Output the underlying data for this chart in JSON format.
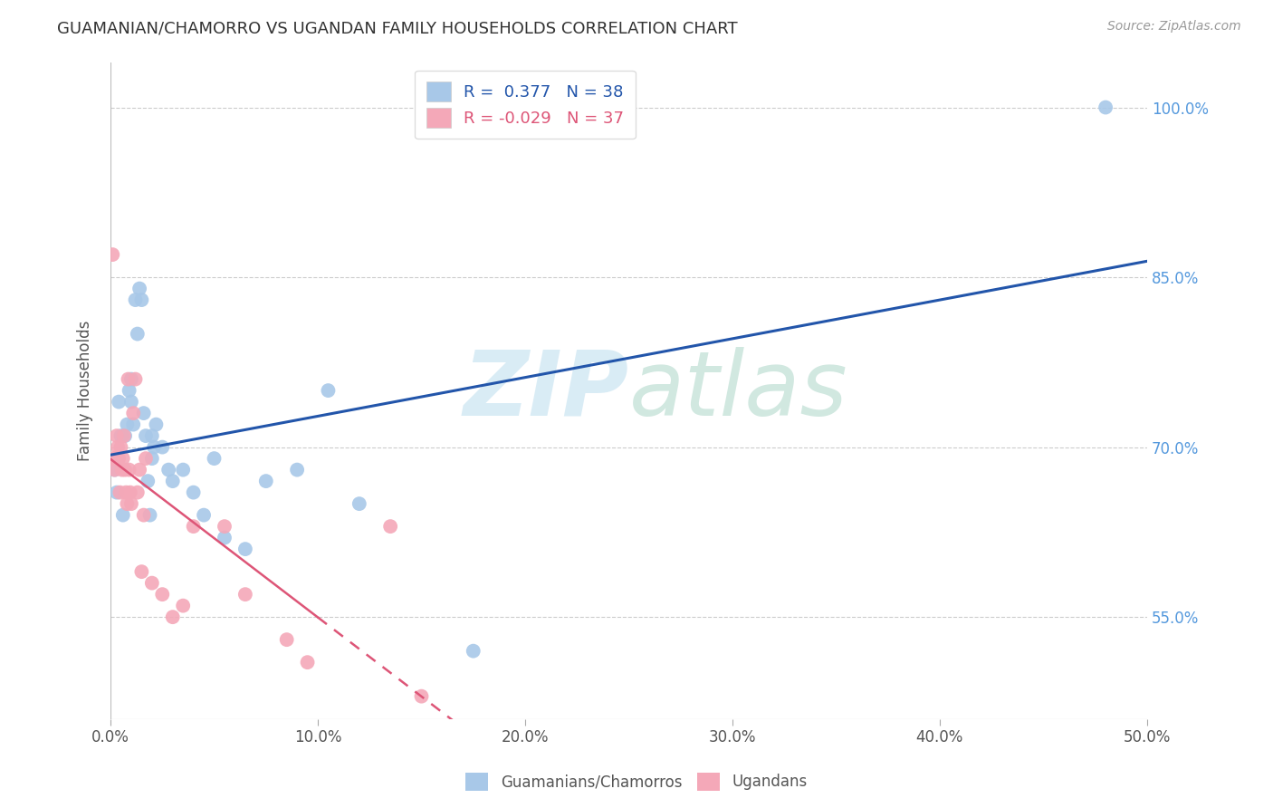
{
  "title": "GUAMANIAN/CHAMORRO VS UGANDAN FAMILY HOUSEHOLDS CORRELATION CHART",
  "source": "Source: ZipAtlas.com",
  "ylabel": "Family Households",
  "x_min": 0.0,
  "x_max": 50.0,
  "y_min": 46.0,
  "y_max": 104.0,
  "xtick_labels": [
    "0.0%",
    "10.0%",
    "20.0%",
    "30.0%",
    "40.0%",
    "50.0%"
  ],
  "xtick_vals": [
    0,
    10,
    20,
    30,
    40,
    50
  ],
  "ytick_labels": [
    "55.0%",
    "70.0%",
    "85.0%",
    "100.0%"
  ],
  "ytick_vals": [
    55,
    70,
    85,
    100
  ],
  "blue_R": 0.377,
  "blue_N": 38,
  "pink_R": -0.029,
  "pink_N": 37,
  "legend_label_blue": "Guamanians/Chamorros",
  "legend_label_pink": "Ugandans",
  "blue_color": "#a8c8e8",
  "pink_color": "#f4a8b8",
  "blue_line_color": "#2255aa",
  "pink_line_color": "#dd5577",
  "watermark_zip": "ZIP",
  "watermark_atlas": "atlas",
  "background_color": "#ffffff",
  "blue_x": [
    0.2,
    0.3,
    0.4,
    0.5,
    0.6,
    0.7,
    0.8,
    0.9,
    1.0,
    1.0,
    1.1,
    1.2,
    1.3,
    1.4,
    1.5,
    1.6,
    1.7,
    1.8,
    1.9,
    2.0,
    2.0,
    2.1,
    2.2,
    2.5,
    2.8,
    3.0,
    3.5,
    4.0,
    4.5,
    5.0,
    5.5,
    6.5,
    7.5,
    9.0,
    10.5,
    12.0,
    17.5,
    48.0
  ],
  "blue_y": [
    68,
    66,
    74,
    71,
    64,
    71,
    72,
    75,
    74,
    76,
    72,
    83,
    80,
    84,
    83,
    73,
    71,
    67,
    64,
    71,
    69,
    70,
    72,
    70,
    68,
    67,
    68,
    66,
    64,
    69,
    62,
    61,
    67,
    68,
    75,
    65,
    52,
    100
  ],
  "pink_x": [
    0.1,
    0.15,
    0.2,
    0.25,
    0.3,
    0.35,
    0.4,
    0.45,
    0.5,
    0.55,
    0.6,
    0.65,
    0.7,
    0.75,
    0.8,
    0.85,
    0.9,
    0.95,
    1.0,
    1.1,
    1.2,
    1.3,
    1.4,
    1.5,
    1.6,
    1.7,
    2.0,
    2.5,
    3.0,
    3.5,
    4.0,
    5.5,
    6.5,
    8.5,
    9.5,
    13.5,
    15.0
  ],
  "pink_y": [
    87,
    69,
    68,
    69,
    71,
    70,
    69,
    66,
    70,
    68,
    69,
    71,
    68,
    66,
    65,
    76,
    68,
    66,
    65,
    73,
    76,
    66,
    68,
    59,
    64,
    69,
    58,
    57,
    55,
    56,
    63,
    63,
    57,
    53,
    51,
    63,
    48
  ],
  "pink_solid_end": 10.0
}
